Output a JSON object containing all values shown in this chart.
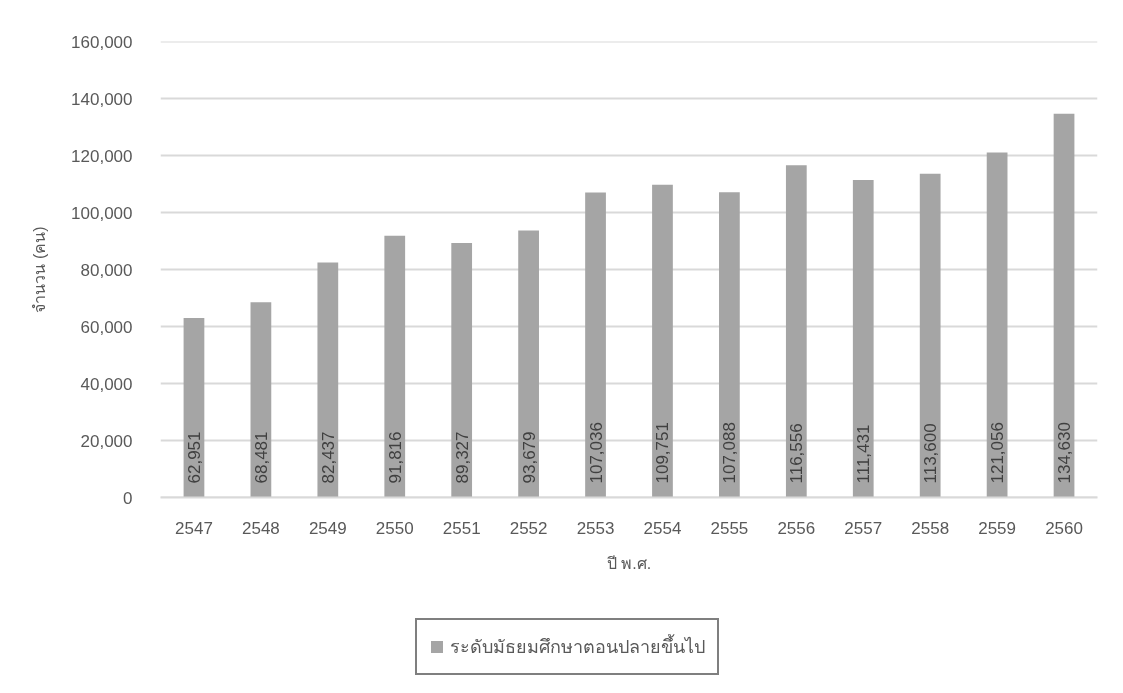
{
  "chart_data": {
    "type": "bar",
    "xlabel": "ปี พ.ศ.",
    "ylabel": "จำนวน (คน)",
    "categories": [
      "2547",
      "2548",
      "2549",
      "2550",
      "2551",
      "2552",
      "2553",
      "2554",
      "2555",
      "2556",
      "2557",
      "2558",
      "2559",
      "2560"
    ],
    "series": [
      {
        "name": "ระดับมัธยมศึกษาตอนปลายขึ้นไป",
        "color": "#a5a5a5",
        "values": [
          62951,
          68481,
          82437,
          91816,
          89327,
          93679,
          107036,
          109751,
          107088,
          116556,
          111431,
          113600,
          121056,
          134630
        ],
        "value_labels": [
          "62,951",
          "68,481",
          "82,437",
          "91,816",
          "89,327",
          "93,679",
          "107,036",
          "109,751",
          "107,088",
          "116,556",
          "111,431",
          "113,600",
          "121,056",
          "134,630"
        ]
      }
    ],
    "ylim": [
      0,
      160000
    ],
    "yticks": [
      {
        "value": 0,
        "label": "0"
      },
      {
        "value": 20000,
        "label": "20,000"
      },
      {
        "value": 40000,
        "label": "40,000"
      },
      {
        "value": 60000,
        "label": "60,000"
      },
      {
        "value": 80000,
        "label": "80,000"
      },
      {
        "value": 100000,
        "label": "100,000"
      },
      {
        "value": 120000,
        "label": "120,000"
      },
      {
        "value": 140000,
        "label": "140,000"
      },
      {
        "value": 160000,
        "label": "160,000"
      }
    ],
    "grid": "y",
    "legend": "bottom"
  }
}
